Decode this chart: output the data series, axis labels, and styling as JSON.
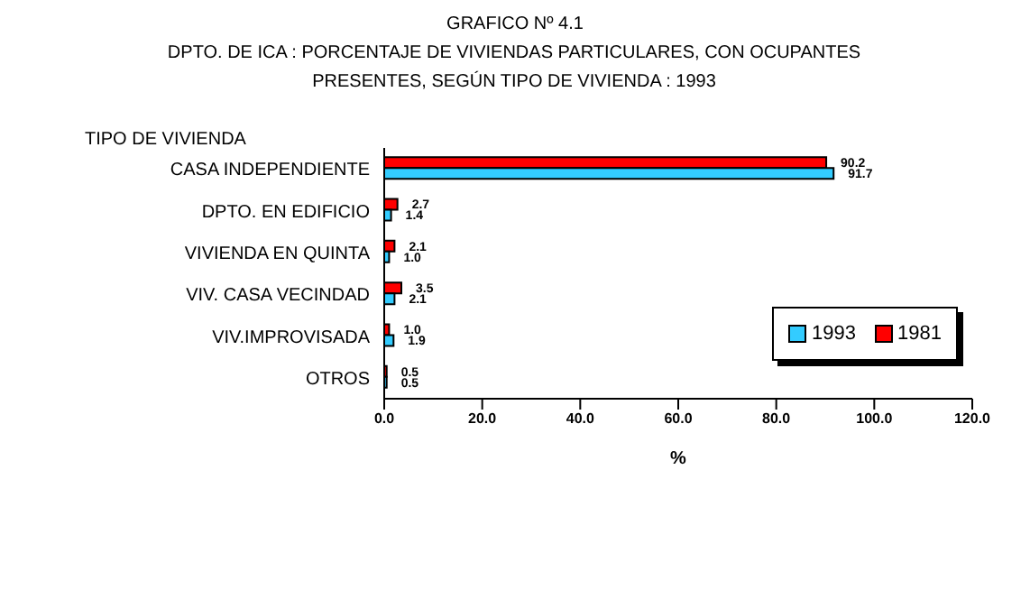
{
  "chart_data": {
    "type": "bar",
    "orientation": "horizontal",
    "title": "GRAFICO Nº 4.1",
    "subtitle": "DPTO. DE ICA : PORCENTAJE DE VIVIENDAS PARTICULARES, CON OCUPANTES PRESENTES, SEGÚN TIPO DE VIVIENDA : 1993",
    "ylabel": "TIPO DE VIVIENDA",
    "xlabel": "%",
    "categories": [
      "CASA INDEPENDIENTE",
      "DPTO. EN EDIFICIO",
      "VIVIENDA EN QUINTA",
      "VIV. CASA VECINDAD",
      "VIV.IMPROVISADA",
      "OTROS"
    ],
    "series": [
      {
        "name": "1981",
        "color": "#ff0000",
        "values": [
          90.2,
          2.7,
          2.1,
          3.5,
          1.0,
          0.5
        ],
        "value_labels": [
          "90.2",
          "2.7",
          "2.1",
          "3.5",
          "1.0",
          "0.5"
        ]
      },
      {
        "name": "1993",
        "color": "#33ccff",
        "values": [
          91.7,
          1.4,
          1.0,
          2.1,
          1.9,
          0.5
        ],
        "value_labels": [
          "91.7",
          "1.4",
          "1.0",
          "2.1",
          "1.9",
          "0.5"
        ]
      }
    ],
    "xlim": [
      0,
      120
    ],
    "xticks": [
      {
        "value": 0,
        "label": "0.0"
      },
      {
        "value": 20,
        "label": "20.0"
      },
      {
        "value": 40,
        "label": "40.0"
      },
      {
        "value": 60,
        "label": "60.0"
      },
      {
        "value": 80,
        "label": "80.0"
      },
      {
        "value": 100,
        "label": "100.0"
      },
      {
        "value": 120,
        "label": "120.0"
      }
    ],
    "legend": "right",
    "grid": false
  }
}
